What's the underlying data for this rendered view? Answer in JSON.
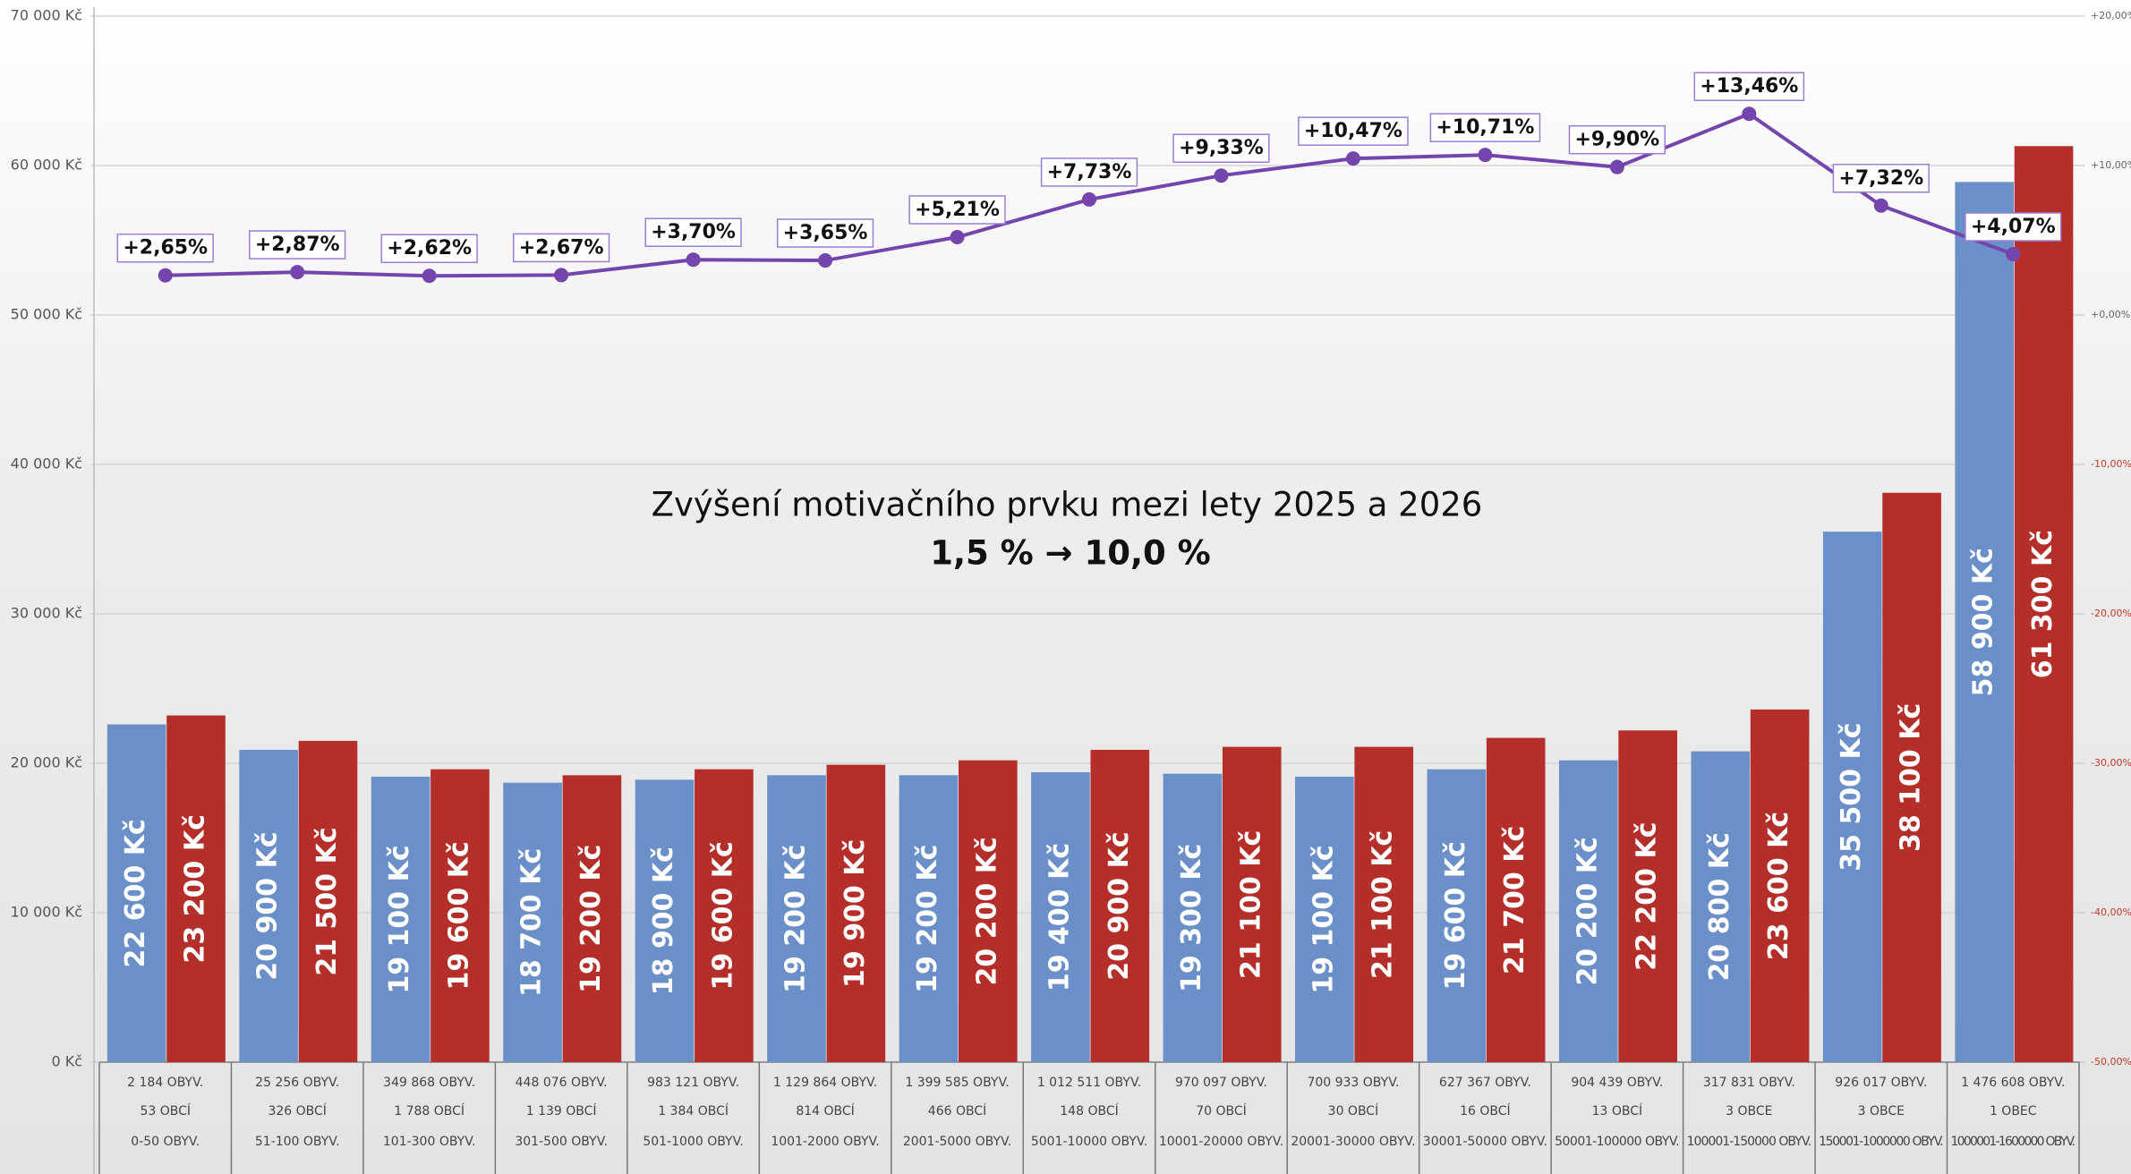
{
  "chart_data": {
    "type": "bar",
    "categories": [
      "0-50 OBYV.",
      "51-100 OBYV.",
      "101-300 OBYV.",
      "301-500 OBYV.",
      "501-1000 OBYV.",
      "1001-2000 OBYV.",
      "2001-5000 OBYV.",
      "5001-10000 OBYV.",
      "10001-20000 OBYV.",
      "20001-30000 OBYV.",
      "30001-50000 OBYV.",
      "50001-100000 OBYV.",
      "100001-150000 OBYV.",
      "150001-1000000 OBYV.",
      "1000001-1600000 OBYV."
    ],
    "population": [
      "2 184 OBYV.",
      "25 256 OBYV.",
      "349 868 OBYV.",
      "448 076 OBYV.",
      "983 121 OBYV.",
      "1 129 864 OBYV.",
      "1 399 585 OBYV.",
      "1 012 511 OBYV.",
      "970 097 OBYV.",
      "700 933 OBYV.",
      "627 367 OBYV.",
      "904 439 OBYV.",
      "317 831 OBYV.",
      "926 017 OBYV.",
      "1 476 608 OBYV."
    ],
    "municipalities": [
      "53 OBCÍ",
      "326 OBCÍ",
      "1 788 OBCÍ",
      "1 139 OBCÍ",
      "1 384 OBCÍ",
      "814 OBCÍ",
      "466 OBCÍ",
      "148 OBCÍ",
      "70 OBCÍ",
      "30 OBCÍ",
      "16 OBCÍ",
      "13 OBCÍ",
      "3 OBCE",
      "3 OBCE",
      "1 OBEC"
    ],
    "annotations": [
      "Zvýšení motivačního prvku mezi lety 2025 a 2026",
      "1,5 % → 10,0 %"
    ],
    "series": [
      {
        "color": "#6b8fc8",
        "values": [
          22600,
          20900,
          19100,
          18700,
          18900,
          19200,
          19200,
          19400,
          19300,
          19100,
          19600,
          20200,
          20800,
          35500,
          58900
        ],
        "value_labels": [
          "22 600 Kč",
          "20 900 Kč",
          "19 100 Kč",
          "18 700 Kč",
          "18 900 Kč",
          "19 200 Kč",
          "19 200 Kč",
          "19 400 Kč",
          "19 300 Kč",
          "19 100 Kč",
          "19 600 Kč",
          "20 200 Kč",
          "20 800 Kč",
          "35 500 Kč",
          "58 900 Kč"
        ]
      },
      {
        "color": "#b42f29",
        "values": [
          23200,
          21500,
          19600,
          19200,
          19600,
          19900,
          20200,
          20900,
          21100,
          21100,
          21700,
          22200,
          23600,
          38100,
          61300
        ],
        "value_labels": [
          "23 200 Kč",
          "21 500 Kč",
          "19 600 Kč",
          "19 200 Kč",
          "19 600 Kč",
          "19 900 Kč",
          "20 200 Kč",
          "20 900 Kč",
          "21 100 Kč",
          "21 100 Kč",
          "21 700 Kč",
          "22 200 Kč",
          "23 600 Kč",
          "38 100 Kč",
          "61 300 Kč"
        ]
      },
      {
        "type": "line",
        "axis": "y2",
        "color": "#7445ad",
        "values": [
          2.65,
          2.87,
          2.62,
          2.67,
          3.7,
          3.65,
          5.21,
          7.73,
          9.33,
          10.47,
          10.71,
          9.9,
          13.46,
          7.32,
          4.07
        ],
        "value_labels": [
          "+2,65%",
          "+2,87%",
          "+2,62%",
          "+2,67%",
          "+3,70%",
          "+3,65%",
          "+5,21%",
          "+7,73%",
          "+9,33%",
          "+10,47%",
          "+10,71%",
          "+9,90%",
          "+13,46%",
          "+7,32%",
          "+4,07%"
        ]
      }
    ],
    "ylim": [
      0,
      70000
    ],
    "yticks": [
      {
        "value": 0,
        "label": "0 Kč"
      },
      {
        "value": 10000,
        "label": "10 000 Kč"
      },
      {
        "value": 20000,
        "label": "20 000 Kč"
      },
      {
        "value": 30000,
        "label": "30 000 Kč"
      },
      {
        "value": 40000,
        "label": "40 000 Kč"
      },
      {
        "value": 50000,
        "label": "50 000 Kč"
      },
      {
        "value": 60000,
        "label": "60 000 Kč"
      },
      {
        "value": 70000,
        "label": "70 000 Kč"
      }
    ],
    "y2lim": [
      -50,
      20
    ],
    "y2ticks": [
      {
        "value": -50,
        "label": "-50,00%"
      },
      {
        "value": -40,
        "label": "-40,00%"
      },
      {
        "value": -30,
        "label": "-30,00%"
      },
      {
        "value": -20,
        "label": "-20,00%"
      },
      {
        "value": -10,
        "label": "-10,00%"
      },
      {
        "value": 0,
        "label": "+0,00%"
      },
      {
        "value": 10,
        "label": "+10,00%"
      },
      {
        "value": 20,
        "label": "+20,00%"
      }
    ],
    "grid": true
  }
}
